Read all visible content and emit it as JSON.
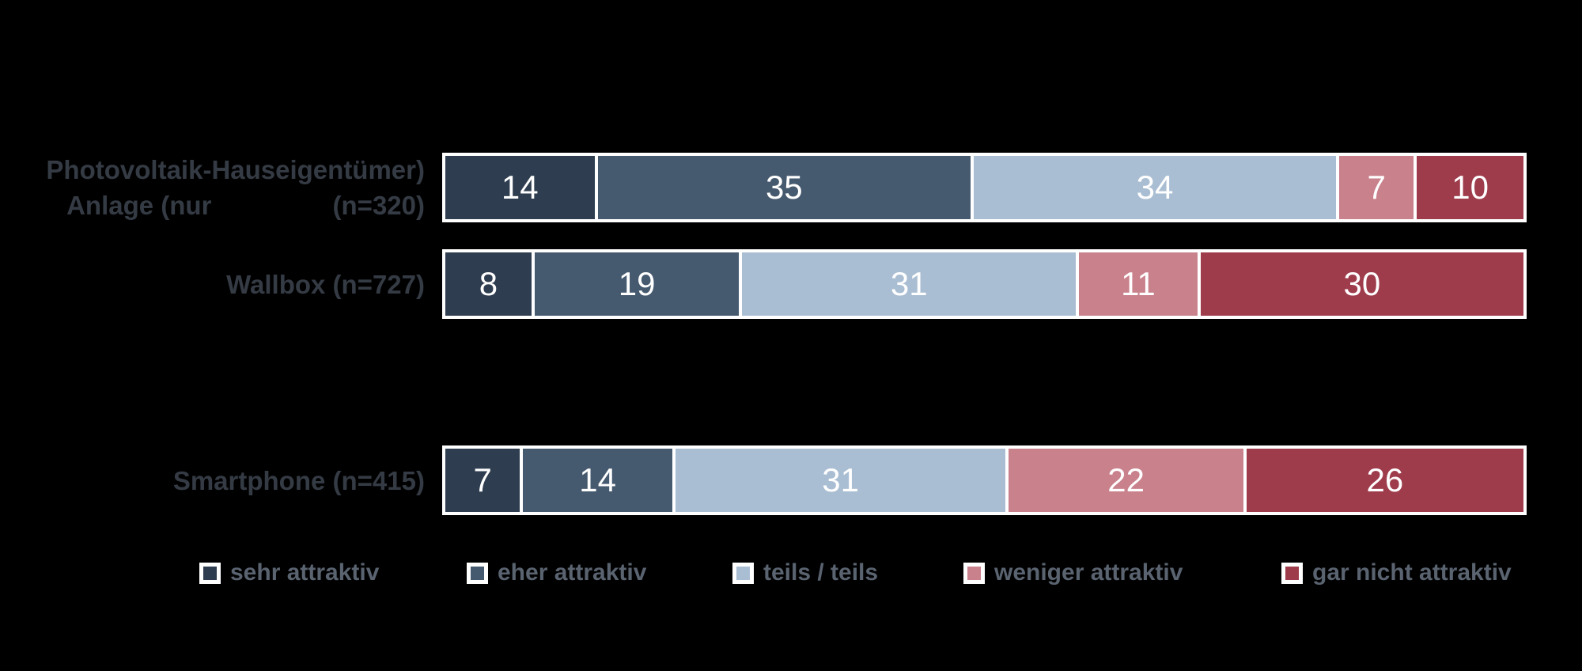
{
  "chart_data": {
    "type": "bar",
    "orientation": "horizontal",
    "stacked": true,
    "unit": "percent",
    "title": "",
    "xlabel": "",
    "ylabel": "",
    "xlim": [
      0,
      100
    ],
    "grid": false,
    "axes_visible": false,
    "legend_position": "bottom",
    "categories": [
      "Photovoltaik-Anlage (nur Hauseigentümer) (n=320)",
      "Wallbox (n=727)",
      "Smartphone (n=415)"
    ],
    "series": [
      {
        "name": "sehr attraktiv",
        "color": "#2e3d4f",
        "values": [
          14,
          8,
          7
        ]
      },
      {
        "name": "eher attraktiv",
        "color": "#45596f",
        "values": [
          35,
          19,
          14
        ]
      },
      {
        "name": "teils / teils",
        "color": "#aabed3",
        "values": [
          34,
          31,
          31
        ]
      },
      {
        "name": "weniger attraktiv",
        "color": "#c9818c",
        "values": [
          7,
          11,
          22
        ]
      },
      {
        "name": "gar nicht attraktiv",
        "color": "#9e3c4c",
        "values": [
          10,
          30,
          26
        ]
      }
    ]
  },
  "labels": {
    "rows": [
      [
        "Photovoltaik-Anlage (nur",
        "Hauseigentümer) (n=320)"
      ],
      [
        "Wallbox (n=727)"
      ],
      [
        "Smartphone (n=415)"
      ]
    ]
  },
  "colors": {
    "background": "#000000",
    "bar_border": "#ffffff",
    "bar_value_text": "#ffffff",
    "category_label_text": "#353b44",
    "legend_text": "#5a6370"
  }
}
